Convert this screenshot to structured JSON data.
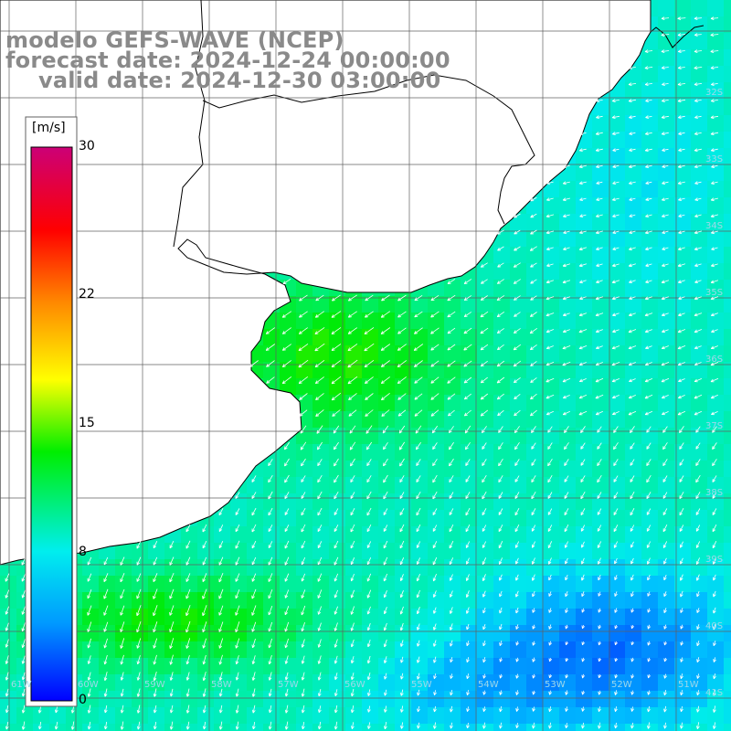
{
  "title": {
    "line1": "modelo GEFS-WAVE (NCEP)",
    "line2": "forecast date: 2024-12-24 00:00:00",
    "line3": "valid date: 2024-12-30 03:00:00"
  },
  "colorbar": {
    "unit": "[m/s]",
    "min": 0,
    "max": 30,
    "ticks": [
      "30",
      "22",
      "15",
      "8",
      "0"
    ],
    "tick_values": [
      30,
      22,
      15,
      8,
      0
    ],
    "colors": [
      "#0000ff",
      "#00ccff",
      "#00ff00",
      "#ffff00",
      "#ff8800",
      "#ff0000",
      "#cc0077"
    ]
  },
  "map": {
    "lat_labels": [
      "32S",
      "33S",
      "34S",
      "35S",
      "36S",
      "37S",
      "38S",
      "39S",
      "40S",
      "41S"
    ],
    "lon_labels": [
      "61W",
      "60W",
      "59W",
      "58W",
      "57W",
      "56W",
      "55W",
      "54W",
      "53W",
      "52W",
      "51W"
    ],
    "colors": {
      "land": "#ffffff",
      "coast": "#000000",
      "grid": "#606060",
      "arrow": "#ffffff"
    }
  }
}
